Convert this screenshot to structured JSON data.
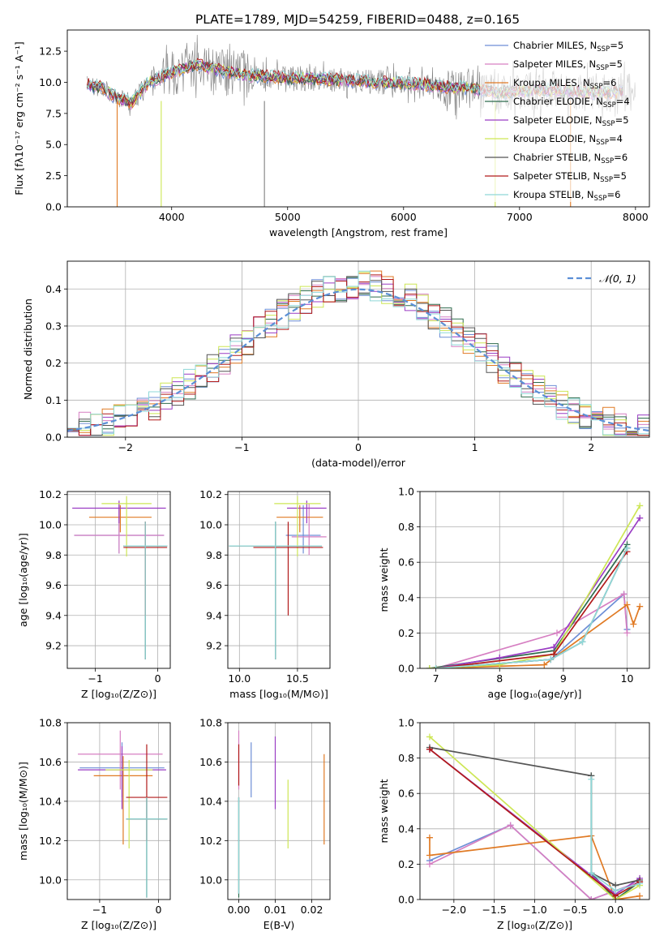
{
  "figure": {
    "title": "PLATE=1789, MJD=54259, FIBERID=0488, z=0.165"
  },
  "models": [
    {
      "name": "Chabrier MILES",
      "nssp": "5",
      "color": "#6d8ed6"
    },
    {
      "name": "Salpeter MILES",
      "nssp": "5",
      "color": "#d67fc2"
    },
    {
      "name": "Kroupa MILES",
      "nssp": "6",
      "color": "#e07a24"
    },
    {
      "name": "Chabrier ELODIE",
      "nssp": "4",
      "color": "#2e6b4d"
    },
    {
      "name": "Salpeter ELODIE",
      "nssp": "5",
      "color": "#9a3cc4"
    },
    {
      "name": "Kroupa ELODIE",
      "nssp": "4",
      "color": "#cde655"
    },
    {
      "name": "Chabrier STELIB",
      "nssp": "6",
      "color": "#555555"
    },
    {
      "name": "Salpeter STELIB",
      "nssp": "5",
      "color": "#b11a1a"
    },
    {
      "name": "Kroupa STELIB",
      "nssp": "6",
      "color": "#8fd8d8"
    }
  ],
  "chart_data": [
    {
      "id": "spectrum",
      "type": "line",
      "xlabel": "wavelength [Angstrom, rest frame]",
      "ylabel": "Flux [fλ10⁻¹⁷ erg cm⁻² s⁻¹ A⁻¹]",
      "xlim": [
        3100,
        8120
      ],
      "ylim": [
        0,
        14.2
      ],
      "xticks": [
        4000,
        5000,
        6000,
        7000,
        8000
      ],
      "yticks": [
        0.0,
        2.5,
        5.0,
        7.5,
        10.0,
        12.5
      ],
      "legend_position": "right",
      "continuum": {
        "x": [
          3270,
          3400,
          3500,
          3650,
          3800,
          3900,
          4000,
          4200,
          4400,
          4600,
          4800,
          5000,
          5200,
          5400,
          5600,
          5800,
          6000,
          6200,
          6400,
          6600,
          6800,
          7000,
          7200,
          7400,
          7600,
          7800,
          8000
        ],
        "y": [
          9.8,
          9.6,
          8.9,
          8.3,
          10.0,
          10.4,
          10.8,
          11.4,
          11.0,
          10.6,
          10.5,
          10.3,
          10.3,
          10.2,
          10.1,
          10.0,
          9.9,
          9.8,
          9.6,
          9.5,
          9.2,
          9.3,
          9.4,
          9.3,
          9.2,
          9.2,
          9.3
        ]
      },
      "dips": [
        {
          "x": 3530,
          "y": 0.0
        },
        {
          "x": 3910,
          "y": 0.0
        },
        {
          "x": 4800,
          "y": 0.0
        },
        {
          "x": 6790,
          "y": 0.0
        },
        {
          "x": 7440,
          "y": 0.0
        }
      ]
    },
    {
      "id": "residuals",
      "type": "histogram",
      "xlabel": "(data-model)/error",
      "ylabel": "Normed distribution",
      "xlim": [
        -2.5,
        2.5
      ],
      "ylim": [
        0,
        0.475
      ],
      "xticks": [
        -2,
        -1,
        0,
        1,
        2
      ],
      "yticks": [
        0.0,
        0.1,
        0.2,
        0.3,
        0.4
      ],
      "bin_edges_range": [
        -2.5,
        2.5
      ],
      "bins": 50,
      "gaussian_label": "𝒩(0, 1)",
      "gaussian_color": "#5b8fd6"
    },
    {
      "id": "age_vs_Z",
      "type": "errorbar",
      "xlabel": "Z [log₁₀(Z/Z⊙)]",
      "ylabel": "age  [log₁₀(age/yr)]",
      "xlim": [
        -1.45,
        0.2
      ],
      "ylim": [
        9.05,
        10.22
      ],
      "xticks": [
        -1,
        0
      ],
      "yticks": [
        9.2,
        9.4,
        9.6,
        9.8,
        10.0,
        10.2
      ],
      "points": [
        {
          "model": 0,
          "x": -0.62,
          "y": 9.93,
          "xerr": 0.72,
          "yerr": [
            0.12,
            0.2
          ]
        },
        {
          "model": 1,
          "x": -0.62,
          "y": 9.93,
          "xerr": 0.72,
          "yerr": [
            0.12,
            0.22
          ]
        },
        {
          "model": 2,
          "x": -0.6,
          "y": 10.05,
          "xerr": 0.5,
          "yerr": [
            0.1,
            0.08
          ]
        },
        {
          "model": 3,
          "x": -0.2,
          "y": 9.86,
          "xerr": 0.35,
          "yerr": [
            0.75,
            0.16
          ]
        },
        {
          "model": 4,
          "x": -0.62,
          "y": 10.11,
          "xerr": 0.75,
          "yerr": [
            0.1,
            0.05
          ]
        },
        {
          "model": 5,
          "x": -0.5,
          "y": 10.14,
          "xerr": 0.4,
          "yerr": [
            0.35,
            0.05
          ]
        },
        {
          "model": 6,
          "x": -0.2,
          "y": 9.86,
          "xerr": 0.35,
          "yerr": [
            0.75,
            0.16
          ]
        },
        {
          "model": 7,
          "x": -0.2,
          "y": 9.85,
          "xerr": 0.35,
          "yerr": [
            0.45,
            0.17
          ]
        },
        {
          "model": 8,
          "x": -0.2,
          "y": 9.86,
          "xerr": 0.35,
          "yerr": [
            0.75,
            0.16
          ]
        }
      ]
    },
    {
      "id": "age_vs_mass",
      "type": "errorbar",
      "xlabel": "mass [log₁₀(M/M⊙)]",
      "ylabel": "",
      "xlim": [
        9.9,
        10.78
      ],
      "ylim": [
        9.05,
        10.22
      ],
      "xticks": [
        10.0,
        10.5
      ],
      "yticks": [
        9.2,
        9.4,
        9.6,
        9.8,
        10.0,
        10.2
      ],
      "points": [
        {
          "model": 0,
          "x": 10.55,
          "y": 9.93,
          "xerr": 0.15,
          "yerr": [
            0.12,
            0.2
          ]
        },
        {
          "model": 1,
          "x": 10.6,
          "y": 9.92,
          "xerr": 0.15,
          "yerr": [
            0.12,
            0.22
          ]
        },
        {
          "model": 2,
          "x": 10.52,
          "y": 10.05,
          "xerr": 0.2,
          "yerr": [
            0.1,
            0.08
          ]
        },
        {
          "model": 3,
          "x": 10.31,
          "y": 9.86,
          "xerr": 0.4,
          "yerr": [
            0.75,
            0.16
          ]
        },
        {
          "model": 4,
          "x": 10.58,
          "y": 10.11,
          "xerr": 0.17,
          "yerr": [
            0.1,
            0.05
          ]
        },
        {
          "model": 5,
          "x": 10.5,
          "y": 10.14,
          "xerr": 0.2,
          "yerr": [
            0.35,
            0.05
          ]
        },
        {
          "model": 6,
          "x": 10.31,
          "y": 9.86,
          "xerr": 0.4,
          "yerr": [
            0.75,
            0.16
          ]
        },
        {
          "model": 7,
          "x": 10.42,
          "y": 9.85,
          "xerr": 0.3,
          "yerr": [
            0.45,
            0.17
          ]
        },
        {
          "model": 8,
          "x": 10.31,
          "y": 9.86,
          "xerr": 0.4,
          "yerr": [
            0.75,
            0.16
          ]
        }
      ]
    },
    {
      "id": "massweight_vs_age",
      "type": "line",
      "xlabel": "age  [log₁₀(age/yr)]",
      "ylabel": "mass weight",
      "xlim": [
        6.75,
        10.35
      ],
      "ylim": [
        0,
        1.0
      ],
      "xticks": [
        7,
        8,
        9,
        10
      ],
      "yticks": [
        0.0,
        0.2,
        0.4,
        0.6,
        0.8,
        1.0
      ],
      "series": [
        {
          "model": 0,
          "x": [
            7.0,
            8.8,
            9.95,
            10.0
          ],
          "y": [
            0.0,
            0.05,
            0.42,
            0.22
          ]
        },
        {
          "model": 1,
          "x": [
            7.0,
            8.9,
            9.95,
            10.0
          ],
          "y": [
            0.0,
            0.2,
            0.42,
            0.2
          ]
        },
        {
          "model": 2,
          "x": [
            7.0,
            8.7,
            10.0,
            10.1,
            10.2
          ],
          "y": [
            0.0,
            0.02,
            0.36,
            0.25,
            0.35
          ]
        },
        {
          "model": 3,
          "x": [
            6.9,
            8.85,
            10.0
          ],
          "y": [
            0.0,
            0.1,
            0.7
          ]
        },
        {
          "model": 4,
          "x": [
            7.0,
            8.0,
            8.85,
            10.2
          ],
          "y": [
            0.0,
            0.06,
            0.12,
            0.85
          ]
        },
        {
          "model": 5,
          "x": [
            6.9,
            8.0,
            8.85,
            10.2
          ],
          "y": [
            0.0,
            0.02,
            0.08,
            0.92
          ]
        },
        {
          "model": 6,
          "x": [
            7.0,
            8.8,
            9.3,
            10.0
          ],
          "y": [
            0.0,
            0.05,
            0.15,
            0.68
          ]
        },
        {
          "model": 7,
          "x": [
            7.0,
            8.85,
            10.0
          ],
          "y": [
            0.0,
            0.08,
            0.66
          ]
        },
        {
          "model": 8,
          "x": [
            7.0,
            8.8,
            9.3,
            10.0
          ],
          "y": [
            0.0,
            0.05,
            0.15,
            0.68
          ]
        }
      ]
    },
    {
      "id": "mass_vs_Z",
      "type": "errorbar",
      "xlabel": "Z [log₁₀(Z/Z⊙)]",
      "ylabel": "mass [log₁₀(M/M⊙)]",
      "xlim": [
        -1.55,
        0.2
      ],
      "ylim": [
        9.9,
        10.8
      ],
      "xticks": [
        -1,
        0
      ],
      "yticks": [
        10.0,
        10.2,
        10.4,
        10.6,
        10.8
      ],
      "points": [
        {
          "model": 0,
          "x": -0.62,
          "y": 10.57,
          "xerr": 0.72,
          "yerr": [
            0.15,
            0.13
          ]
        },
        {
          "model": 1,
          "x": -0.65,
          "y": 10.64,
          "xerr": 0.72,
          "yerr": [
            0.18,
            0.12
          ]
        },
        {
          "model": 2,
          "x": -0.6,
          "y": 10.53,
          "xerr": 0.5,
          "yerr": [
            0.35,
            0.1
          ]
        },
        {
          "model": 3,
          "x": -0.2,
          "y": 10.31,
          "xerr": 0.35,
          "yerr": [
            0.4,
            0.11
          ]
        },
        {
          "model": 4,
          "x": -0.62,
          "y": 10.56,
          "xerr": 0.75,
          "yerr": [
            0.2,
            0.12
          ]
        },
        {
          "model": 5,
          "x": -0.5,
          "y": 10.56,
          "xerr": 0.4,
          "yerr": [
            0.4,
            0.05
          ]
        },
        {
          "model": 6,
          "x": -0.2,
          "y": 10.31,
          "xerr": 0.35,
          "yerr": [
            0.4,
            0.11
          ]
        },
        {
          "model": 7,
          "x": -0.2,
          "y": 10.42,
          "xerr": 0.35,
          "yerr": [
            0.22,
            0.27
          ]
        },
        {
          "model": 8,
          "x": -0.2,
          "y": 10.31,
          "xerr": 0.35,
          "yerr": [
            0.4,
            0.11
          ]
        }
      ]
    },
    {
      "id": "mass_vs_EBV",
      "type": "errorbar",
      "xlabel": "E(B-V)",
      "ylabel": "",
      "xlim": [
        -0.003,
        0.025
      ],
      "ylim": [
        9.9,
        10.8
      ],
      "xticks": [
        0.0,
        0.01,
        0.02
      ],
      "yticks": [
        10.0,
        10.2,
        10.4,
        10.6,
        10.8
      ],
      "points": [
        {
          "model": 0,
          "x": 0.0034,
          "y": 10.57,
          "xerr": 0,
          "yerr": [
            0.15,
            0.13
          ]
        },
        {
          "model": 1,
          "x": 0.0,
          "y": 10.64,
          "xerr": 0,
          "yerr": [
            0.18,
            0.12
          ]
        },
        {
          "model": 2,
          "x": 0.0234,
          "y": 10.53,
          "xerr": 0,
          "yerr": [
            0.35,
            0.11
          ]
        },
        {
          "model": 3,
          "x": 0.0,
          "y": 10.31,
          "xerr": 0,
          "yerr": [
            0.4,
            0.11
          ]
        },
        {
          "model": 4,
          "x": 0.01,
          "y": 10.56,
          "xerr": 0,
          "yerr": [
            0.2,
            0.17
          ]
        },
        {
          "model": 5,
          "x": 0.0135,
          "y": 10.33,
          "xerr": 0,
          "yerr": [
            0.17,
            0.18
          ]
        },
        {
          "model": 6,
          "x": 0.0,
          "y": 10.31,
          "xerr": 0,
          "yerr": [
            0.38,
            0.11
          ]
        },
        {
          "model": 7,
          "x": 0.0,
          "y": 10.6,
          "xerr": 0,
          "yerr": [
            0.12,
            0.09
          ]
        },
        {
          "model": 8,
          "x": 0.0,
          "y": 10.31,
          "xerr": 0,
          "yerr": [
            0.38,
            0.11
          ]
        }
      ]
    },
    {
      "id": "massweight_vs_Z",
      "type": "line",
      "xlabel": "Z [log₁₀(Z/Z⊙)]",
      "ylabel": "mass weight",
      "xlim": [
        -2.42,
        0.42
      ],
      "ylim": [
        0,
        1.0
      ],
      "xticks": [
        -2.0,
        -1.5,
        -1.0,
        -0.5,
        0.0
      ],
      "yticks": [
        0.0,
        0.2,
        0.4,
        0.6,
        0.8,
        1.0
      ],
      "series": [
        {
          "model": 0,
          "x": [
            -2.3,
            -1.3,
            -0.3,
            0.0,
            0.3
          ],
          "y": [
            0.22,
            0.42,
            0.0,
            0.05,
            0.1
          ]
        },
        {
          "model": 1,
          "x": [
            -2.3,
            -1.3,
            -0.3,
            0.0,
            0.3
          ],
          "y": [
            0.2,
            0.42,
            0.0,
            0.05,
            0.1
          ]
        },
        {
          "model": 2,
          "x": [
            -2.3,
            -2.3,
            -0.3,
            0.0,
            0.3
          ],
          "y": [
            0.35,
            0.25,
            0.36,
            0.0,
            0.02
          ]
        },
        {
          "model": 3,
          "x": [
            -0.3,
            -0.3,
            0.0,
            0.3
          ],
          "y": [
            0.7,
            0.15,
            0.0,
            0.1
          ]
        },
        {
          "model": 4,
          "x": [
            -2.3,
            0.0,
            0.3
          ],
          "y": [
            0.85,
            0.03,
            0.12
          ]
        },
        {
          "model": 5,
          "x": [
            -2.3,
            0.0,
            0.3
          ],
          "y": [
            0.92,
            0.0,
            0.08
          ]
        },
        {
          "model": 6,
          "x": [
            -2.3,
            -0.3,
            -0.3,
            0.0,
            0.3
          ],
          "y": [
            0.86,
            0.7,
            0.15,
            0.08,
            0.11
          ]
        },
        {
          "model": 7,
          "x": [
            -2.3,
            0.0,
            0.3
          ],
          "y": [
            0.85,
            0.02,
            0.1
          ]
        },
        {
          "model": 8,
          "x": [
            -0.3,
            -0.3,
            0.0,
            0.3
          ],
          "y": [
            0.68,
            0.15,
            0.05,
            0.09
          ]
        }
      ]
    }
  ]
}
